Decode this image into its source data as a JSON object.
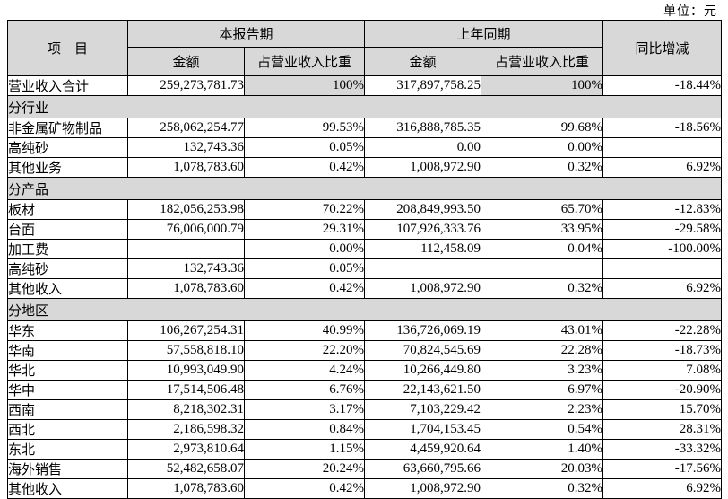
{
  "unit_label": "单位：元",
  "table": {
    "header": {
      "item": "项　目",
      "current_period": "本报告期",
      "prior_period": "上年同期",
      "amount": "金额",
      "pct_of_revenue": "占营业收入比重",
      "yoy_change": "同比增减"
    },
    "rows": [
      {
        "type": "data",
        "label": "营业收入合计",
        "cells": [
          "259,273,781.73",
          "100%",
          "317,897,758.25",
          "100%",
          "-18.44%"
        ],
        "shaded": [
          false,
          true,
          false,
          true,
          false
        ]
      },
      {
        "type": "section",
        "label": "分行业"
      },
      {
        "type": "data",
        "label": "非金属矿物制品",
        "cells": [
          "258,062,254.77",
          "99.53%",
          "316,888,785.35",
          "99.68%",
          "-18.56%"
        ]
      },
      {
        "type": "data",
        "label": "高纯砂",
        "cells": [
          "132,743.36",
          "0.05%",
          "0.00",
          "0.00%",
          ""
        ]
      },
      {
        "type": "data",
        "label": "其他业务",
        "cells": [
          "1,078,783.60",
          "0.42%",
          "1,008,972.90",
          "0.32%",
          "6.92%"
        ]
      },
      {
        "type": "section",
        "label": "分产品"
      },
      {
        "type": "data",
        "label": "板材",
        "cells": [
          "182,056,253.98",
          "70.22%",
          "208,849,993.50",
          "65.70%",
          "-12.83%"
        ]
      },
      {
        "type": "data",
        "label": "台面",
        "cells": [
          "76,006,000.79",
          "29.31%",
          "107,926,333.76",
          "33.95%",
          "-29.58%"
        ]
      },
      {
        "type": "data",
        "label": "加工费",
        "cells": [
          "",
          "0.00%",
          "112,458.09",
          "0.04%",
          "-100.00%"
        ]
      },
      {
        "type": "data",
        "label": "高纯砂",
        "cells": [
          "132,743.36",
          "0.05%",
          "",
          "",
          ""
        ]
      },
      {
        "type": "data",
        "label": "其他收入",
        "cells": [
          "1,078,783.60",
          "0.42%",
          "1,008,972.90",
          "0.32%",
          "6.92%"
        ]
      },
      {
        "type": "section",
        "label": "分地区"
      },
      {
        "type": "data",
        "label": "华东",
        "cells": [
          "106,267,254.31",
          "40.99%",
          "136,726,069.19",
          "43.01%",
          "-22.28%"
        ]
      },
      {
        "type": "data",
        "label": "华南",
        "cells": [
          "57,558,818.10",
          "22.20%",
          "70,824,545.69",
          "22.28%",
          "-18.73%"
        ]
      },
      {
        "type": "data",
        "label": "华北",
        "cells": [
          "10,993,049.90",
          "4.24%",
          "10,266,449.80",
          "3.23%",
          "7.08%"
        ]
      },
      {
        "type": "data",
        "label": "华中",
        "cells": [
          "17,514,506.48",
          "6.76%",
          "22,143,621.50",
          "6.97%",
          "-20.90%"
        ]
      },
      {
        "type": "data",
        "label": "西南",
        "cells": [
          "8,218,302.31",
          "3.17%",
          "7,103,229.42",
          "2.23%",
          "15.70%"
        ]
      },
      {
        "type": "data",
        "label": "西北",
        "cells": [
          "2,186,598.32",
          "0.84%",
          "1,704,153.45",
          "0.54%",
          "28.31%"
        ]
      },
      {
        "type": "data",
        "label": "东北",
        "cells": [
          "2,973,810.64",
          "1.15%",
          "4,459,920.64",
          "1.40%",
          "-33.32%"
        ]
      },
      {
        "type": "data",
        "label": "海外销售",
        "cells": [
          "52,482,658.07",
          "20.24%",
          "63,660,795.66",
          "20.03%",
          "-17.56%"
        ]
      },
      {
        "type": "data",
        "label": "其他收入",
        "cells": [
          "1,078,783.60",
          "0.42%",
          "1,008,972.90",
          "0.32%",
          "6.92%"
        ]
      }
    ]
  }
}
